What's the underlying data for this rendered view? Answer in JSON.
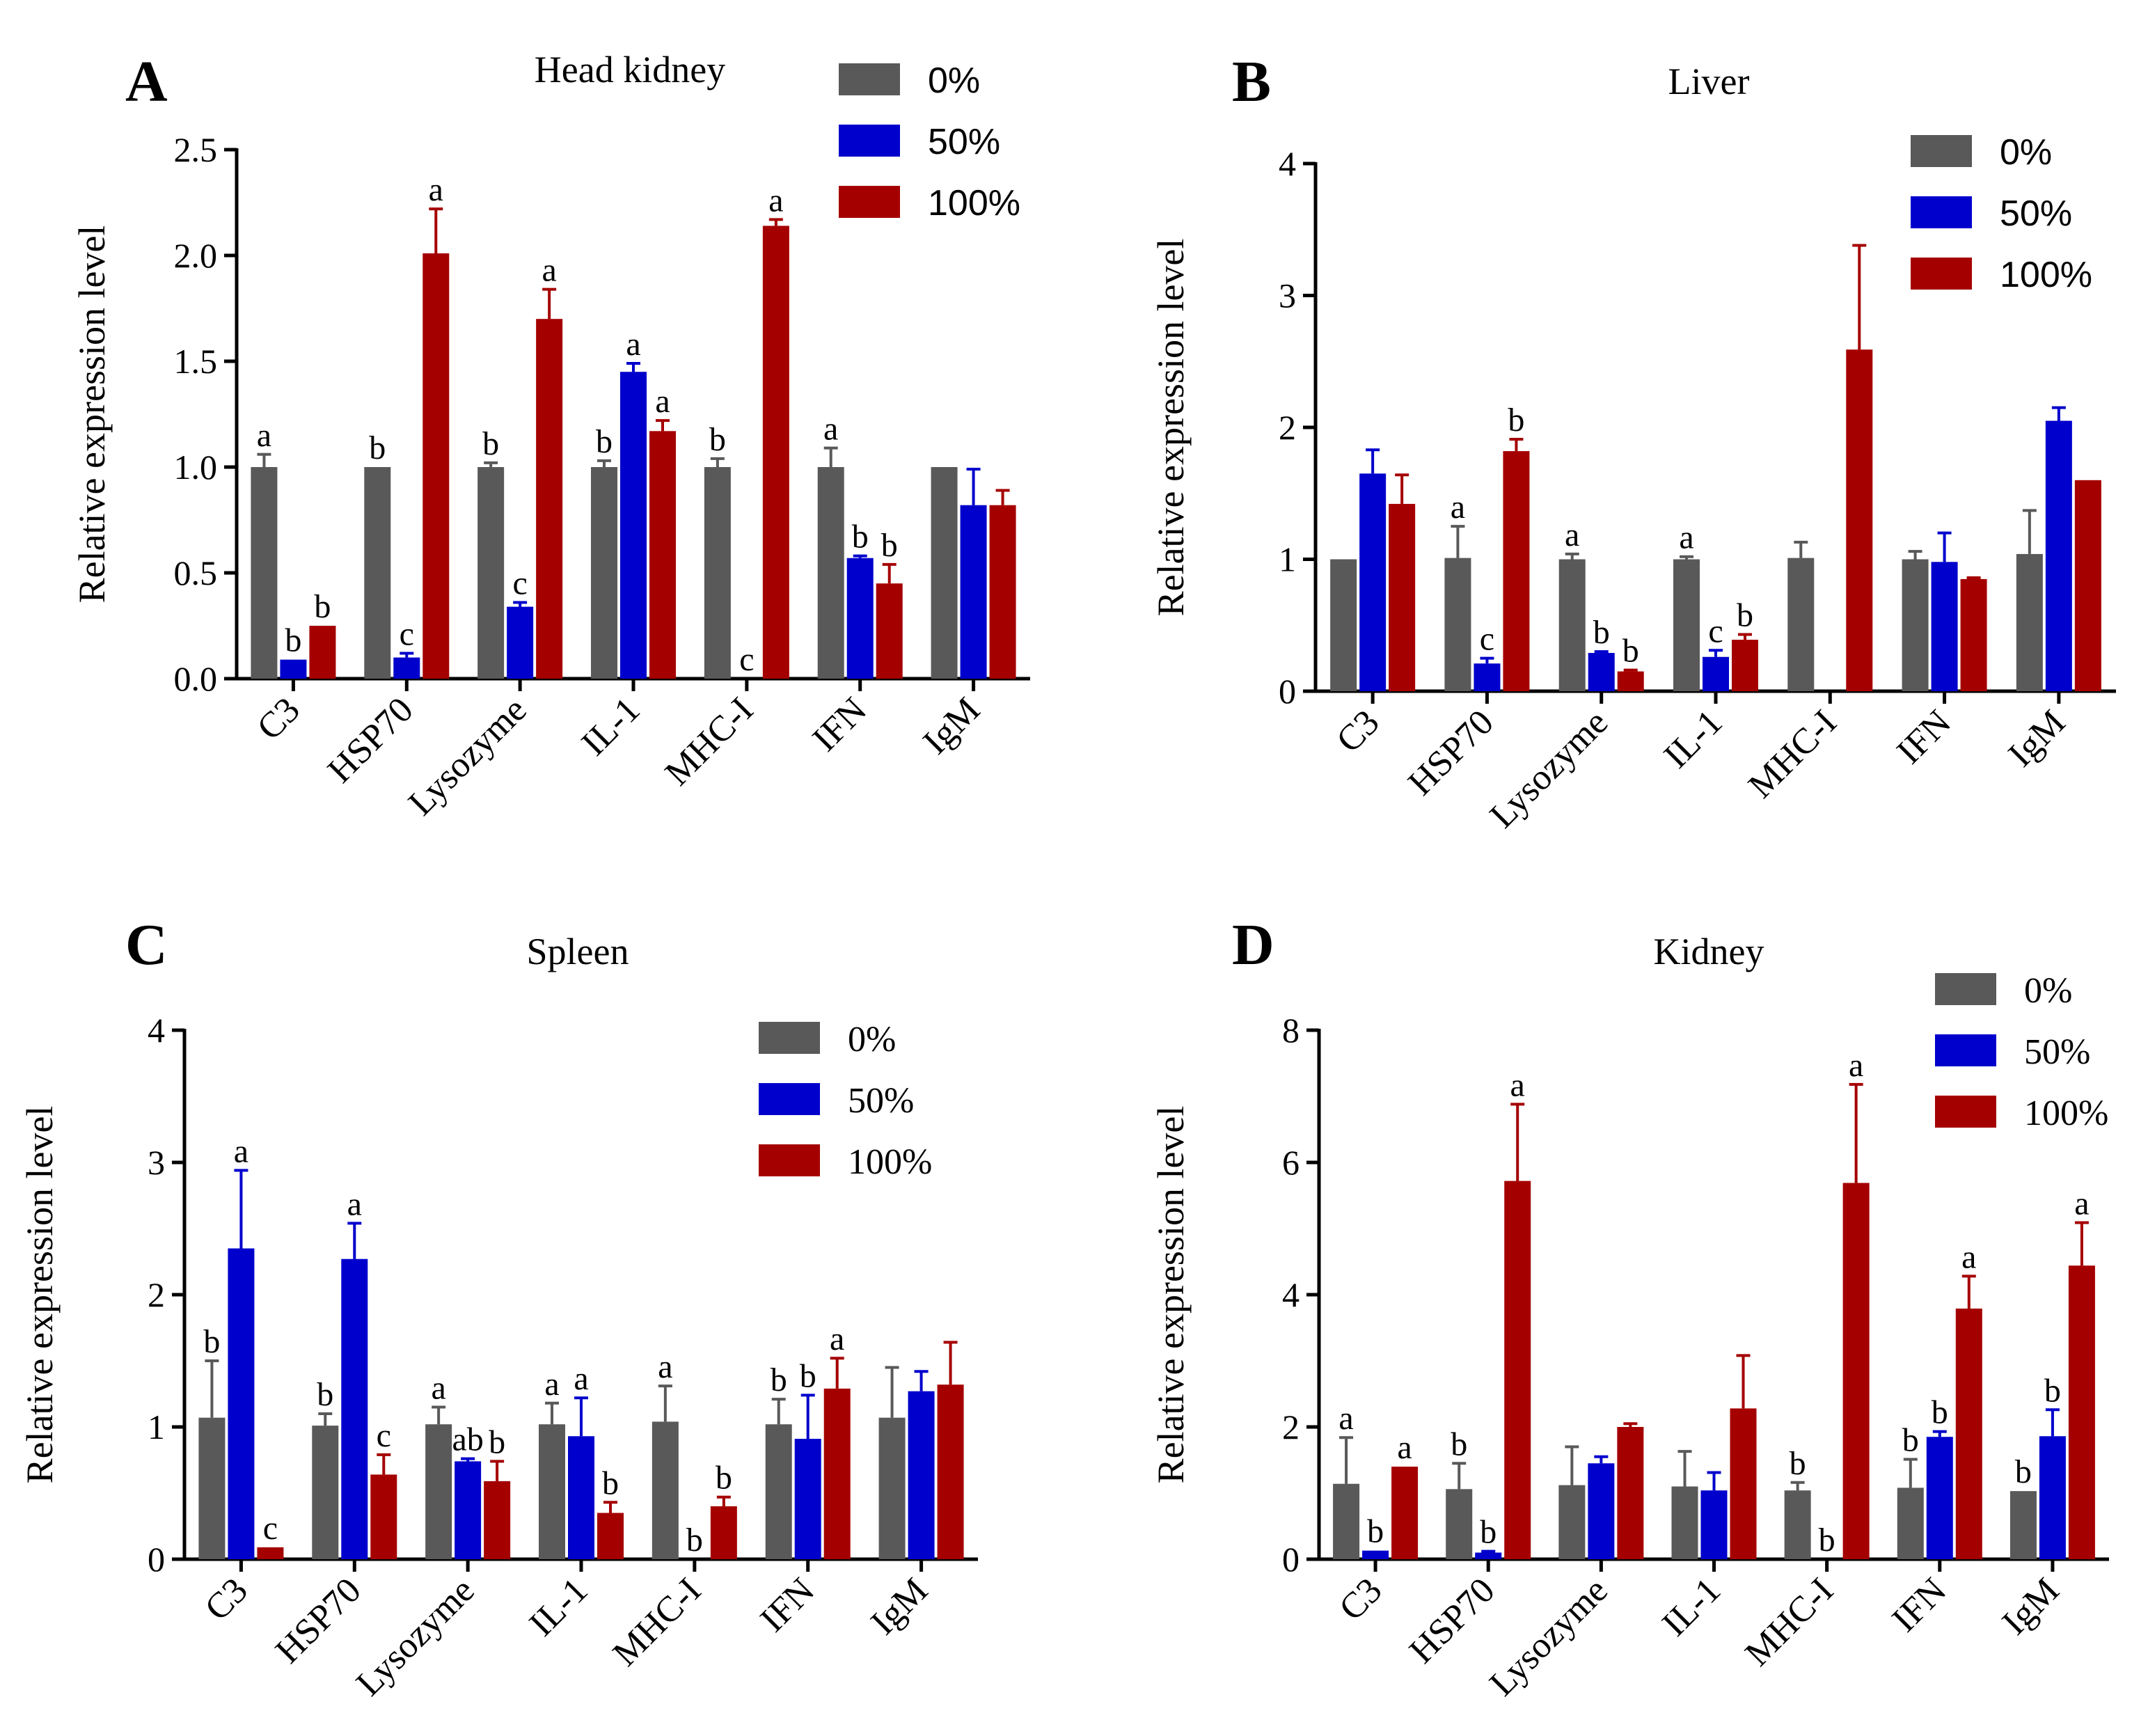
{
  "colors": {
    "0%": "#595959",
    "50%": "#0000cc",
    "100%": "#a50000"
  },
  "chart_data": [
    {
      "type": "bar",
      "panel": "A",
      "title": "Head kidney",
      "xlabel": "",
      "ylabel": "Relative expression level",
      "ylim": [
        0,
        2.5
      ],
      "yticks": [
        "0.0",
        "0.5",
        "1.0",
        "1.5",
        "2.0",
        "2.5"
      ],
      "categories": [
        "C3",
        "HSP70",
        "Lysozyme",
        "IL-1",
        "MHC-I",
        "IFN",
        "IgM"
      ],
      "legend": [
        "0%",
        "50%",
        "100%"
      ],
      "legend_position": "top-right",
      "series": [
        {
          "name": "0%",
          "values": [
            1.0,
            1.0,
            1.0,
            1.0,
            1.0,
            1.0,
            1.0
          ],
          "errors": [
            0.06,
            0.0,
            0.02,
            0.03,
            0.04,
            0.09,
            0.0
          ],
          "labels": [
            "a",
            "b",
            "b",
            "b",
            "b",
            "a",
            ""
          ]
        },
        {
          "name": "50%",
          "values": [
            0.09,
            0.1,
            0.34,
            1.45,
            0.0,
            0.57,
            0.82
          ],
          "errors": [
            0.0,
            0.02,
            0.02,
            0.04,
            0.0,
            0.01,
            0.17
          ],
          "labels": [
            "b",
            "c",
            "c",
            "a",
            "c",
            "b",
            ""
          ]
        },
        {
          "name": "100%",
          "values": [
            0.25,
            2.01,
            1.7,
            1.17,
            2.14,
            0.45,
            0.82
          ],
          "errors": [
            0.0,
            0.21,
            0.14,
            0.05,
            0.03,
            0.09,
            0.07
          ],
          "labels": [
            "b",
            "a",
            "a",
            "a",
            "a",
            "b",
            ""
          ]
        }
      ]
    },
    {
      "type": "bar",
      "panel": "B",
      "title": "Liver",
      "xlabel": "",
      "ylabel": "Relative expression level",
      "ylim": [
        0,
        4
      ],
      "yticks": [
        "0",
        "1",
        "2",
        "3",
        "4"
      ],
      "categories": [
        "C3",
        "HSP70",
        "Lysozyme",
        "IL-1",
        "MHC-I",
        "IFN",
        "IgM"
      ],
      "legend": [
        "0%",
        "50%",
        "100%"
      ],
      "legend_position": "top-right",
      "series": [
        {
          "name": "0%",
          "values": [
            1.0,
            1.01,
            1.0,
            1.0,
            1.01,
            1.0,
            1.04
          ],
          "errors": [
            0.0,
            0.24,
            0.04,
            0.02,
            0.12,
            0.06,
            0.33
          ],
          "labels": [
            "",
            "a",
            "a",
            "a",
            "",
            "",
            ""
          ]
        },
        {
          "name": "50%",
          "values": [
            1.65,
            0.21,
            0.29,
            0.26,
            0.0,
            0.98,
            2.05
          ],
          "errors": [
            0.18,
            0.04,
            0.01,
            0.05,
            0.0,
            0.22,
            0.1
          ],
          "labels": [
            "",
            "c",
            "b",
            "c",
            "",
            "",
            ""
          ]
        },
        {
          "name": "100%",
          "values": [
            1.42,
            1.82,
            0.15,
            0.39,
            2.59,
            0.85,
            1.6
          ],
          "errors": [
            0.22,
            0.09,
            0.01,
            0.04,
            0.79,
            0.01,
            0.0
          ],
          "labels": [
            "",
            "b",
            "b",
            "b",
            "",
            "",
            ""
          ]
        }
      ]
    },
    {
      "type": "bar",
      "panel": "C",
      "title": "Spleen",
      "xlabel": "",
      "ylabel": "Relative expression level",
      "ylim": [
        0,
        4
      ],
      "yticks": [
        "0",
        "1",
        "2",
        "3",
        "4"
      ],
      "categories": [
        "C3",
        "HSP70",
        "Lysozyme",
        "IL-1",
        "MHC-I",
        "IFN",
        "IgM"
      ],
      "legend": [
        "0%",
        "50%",
        "100%"
      ],
      "legend_position": "top-right",
      "series": [
        {
          "name": "0%",
          "values": [
            1.07,
            1.01,
            1.02,
            1.02,
            1.04,
            1.02,
            1.07
          ],
          "errors": [
            0.43,
            0.09,
            0.13,
            0.16,
            0.27,
            0.19,
            0.38
          ],
          "labels": [
            "b",
            "b",
            "a",
            "a",
            "a",
            "b",
            ""
          ]
        },
        {
          "name": "50%",
          "values": [
            2.35,
            2.27,
            0.74,
            0.93,
            0.0,
            0.91,
            1.27
          ],
          "errors": [
            0.59,
            0.27,
            0.02,
            0.29,
            0.0,
            0.33,
            0.15
          ],
          "labels": [
            "a",
            "a",
            "ab",
            "a",
            "b",
            "b",
            ""
          ]
        },
        {
          "name": "100%",
          "values": [
            0.09,
            0.64,
            0.59,
            0.35,
            0.4,
            1.29,
            1.32
          ],
          "errors": [
            0.0,
            0.15,
            0.15,
            0.08,
            0.07,
            0.23,
            0.32
          ],
          "labels": [
            "c",
            "c",
            "b",
            "b",
            "b",
            "a",
            ""
          ]
        }
      ]
    },
    {
      "type": "bar",
      "panel": "D",
      "title": "Kidney",
      "xlabel": "",
      "ylabel": "Relative expression level",
      "ylim": [
        0,
        8
      ],
      "yticks": [
        "0",
        "2",
        "4",
        "6",
        "8"
      ],
      "categories": [
        "C3",
        "HSP70",
        "Lysozyme",
        "IL-1",
        "MHC-I",
        "IFN",
        "IgM"
      ],
      "legend": [
        "0%",
        "50%",
        "100%"
      ],
      "legend_position": "top-right",
      "series": [
        {
          "name": "0%",
          "values": [
            1.14,
            1.06,
            1.12,
            1.1,
            1.04,
            1.08,
            1.03
          ],
          "errors": [
            0.7,
            0.39,
            0.58,
            0.53,
            0.12,
            0.43,
            0.0
          ],
          "labels": [
            "a",
            "b",
            "",
            "",
            "b",
            "b",
            "b"
          ]
        },
        {
          "name": "50%",
          "values": [
            0.13,
            0.1,
            1.45,
            1.04,
            0.0,
            1.85,
            1.86
          ],
          "errors": [
            0.0,
            0.02,
            0.1,
            0.27,
            0.0,
            0.08,
            0.4
          ],
          "labels": [
            "b",
            "b",
            "",
            "",
            "b",
            "b",
            "b"
          ]
        },
        {
          "name": "100%",
          "values": [
            1.4,
            5.72,
            2.0,
            2.28,
            5.69,
            3.79,
            4.44
          ],
          "errors": [
            0.0,
            1.16,
            0.05,
            0.8,
            1.49,
            0.49,
            0.65
          ],
          "labels": [
            "a",
            "a",
            "",
            "",
            "a",
            "a",
            "a"
          ]
        }
      ]
    }
  ]
}
